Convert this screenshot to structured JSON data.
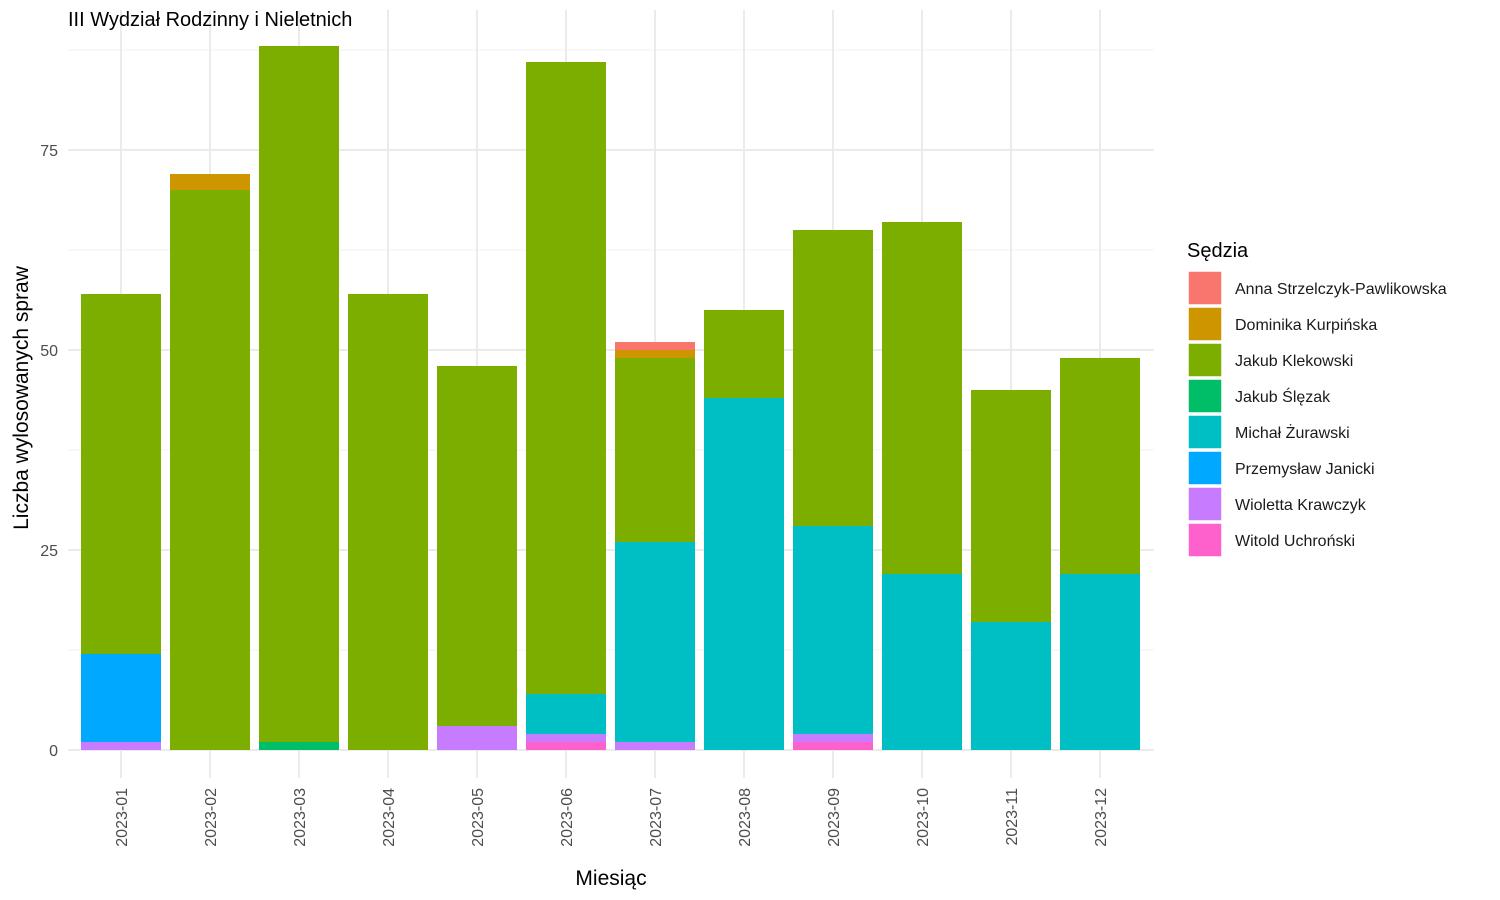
{
  "chart_data": {
    "type": "bar",
    "stacked": true,
    "title": "III Wydział Rodzinny i Nieletnich",
    "xlabel": "Miesiąc",
    "ylabel": "Liczba wylosowanych spraw",
    "legend_title": "Sędzia",
    "legend_position": "right",
    "grid": true,
    "ylim": [
      0,
      90
    ],
    "yticks": [
      0,
      25,
      50,
      75
    ],
    "categories": [
      "2023-01",
      "2023-02",
      "2023-03",
      "2023-04",
      "2023-05",
      "2023-06",
      "2023-07",
      "2023-08",
      "2023-09",
      "2023-10",
      "2023-11",
      "2023-12"
    ],
    "series": [
      {
        "name": "Anna Strzelczyk-Pawlikowska",
        "color": "#F8766D",
        "values": [
          0,
          0,
          0,
          0,
          0,
          0,
          1,
          0,
          0,
          0,
          0,
          0
        ]
      },
      {
        "name": "Dominika Kurpińska",
        "color": "#CD9600",
        "values": [
          0,
          2,
          0,
          0,
          0,
          0,
          1,
          0,
          0,
          0,
          0,
          0
        ]
      },
      {
        "name": "Jakub Klekowski",
        "color": "#7CAE00",
        "values": [
          45,
          70,
          87,
          57,
          45,
          79,
          23,
          11,
          37,
          44,
          29,
          27
        ]
      },
      {
        "name": "Jakub Ślęzak",
        "color": "#00BE67",
        "values": [
          0,
          0,
          1,
          0,
          0,
          0,
          0,
          0,
          0,
          0,
          0,
          0
        ]
      },
      {
        "name": "Michał Żurawski",
        "color": "#00BFC4",
        "values": [
          0,
          0,
          0,
          0,
          0,
          5,
          25,
          44,
          26,
          22,
          16,
          22
        ]
      },
      {
        "name": "Przemysław Janicki",
        "color": "#00A9FF",
        "values": [
          11,
          0,
          0,
          0,
          0,
          0,
          0,
          0,
          0,
          0,
          0,
          0
        ]
      },
      {
        "name": "Wioletta Krawczyk",
        "color": "#C77CFF",
        "values": [
          1,
          0,
          0,
          0,
          3,
          1,
          1,
          0,
          1,
          0,
          0,
          0
        ]
      },
      {
        "name": "Witold Uchroński",
        "color": "#FF61CC",
        "values": [
          0,
          0,
          0,
          0,
          0,
          1,
          0,
          0,
          1,
          0,
          0,
          0
        ]
      }
    ]
  }
}
